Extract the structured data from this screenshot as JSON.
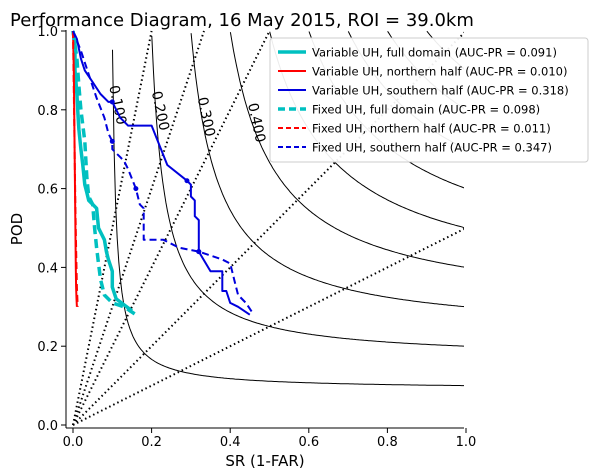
{
  "chart_data": {
    "type": "line",
    "title": "Performance Diagram, 16 May 2015, ROI = 39.0km",
    "xlabel": "SR (1-FAR)",
    "ylabel": "POD",
    "xlim": [
      0.0,
      1.0
    ],
    "ylim": [
      0.0,
      1.0
    ],
    "xticks": [
      "0.0",
      "0.2",
      "0.4",
      "0.6",
      "0.8",
      "1.0"
    ],
    "yticks": [
      "0.0",
      "0.2",
      "0.4",
      "0.6",
      "0.8",
      "1.0"
    ],
    "csi_contour_labels": [
      "0.100",
      "0.200",
      "0.300",
      "0.400"
    ],
    "csi_levels": [
      0.1,
      0.2,
      0.3,
      0.4,
      0.5,
      0.6,
      0.7,
      0.8,
      0.9
    ],
    "bias_slopes": [
      5.0,
      3.0,
      2.0,
      1.0,
      0.5
    ],
    "legend_placement": "top-right",
    "series": [
      {
        "name": "Variable UH, full domain (AUC-PR = 0.091)",
        "color": "#00c0c0",
        "dash": "solid",
        "width": "thick",
        "x": [
          0.0,
          0.005,
          0.005,
          0.01,
          0.012,
          0.015,
          0.02,
          0.025,
          0.03,
          0.035,
          0.04,
          0.06,
          0.065,
          0.08,
          0.085,
          0.09,
          0.1,
          0.1,
          0.11,
          0.15
        ],
        "y": [
          1.0,
          0.97,
          0.9,
          0.84,
          0.8,
          0.75,
          0.7,
          0.66,
          0.61,
          0.59,
          0.57,
          0.55,
          0.5,
          0.47,
          0.44,
          0.42,
          0.39,
          0.35,
          0.32,
          0.29
        ]
      },
      {
        "name": "Variable UH, northern half (AUC-PR = 0.010)",
        "color": "#ff0000",
        "dash": "solid",
        "width": "normal",
        "x": [
          0.0,
          0.002,
          0.003,
          0.004,
          0.005,
          0.006,
          0.007,
          0.008,
          0.009,
          0.01
        ],
        "y": [
          1.0,
          0.9,
          0.8,
          0.7,
          0.6,
          0.5,
          0.4,
          0.35,
          0.32,
          0.3
        ]
      },
      {
        "name": "Variable UH, southern half (AUC-PR = 0.318)",
        "color": "#0000dd",
        "dash": "solid",
        "width": "normal",
        "x": [
          0.0,
          0.01,
          0.02,
          0.03,
          0.05,
          0.07,
          0.09,
          0.1,
          0.12,
          0.14,
          0.2,
          0.24,
          0.29,
          0.3,
          0.3,
          0.31,
          0.31,
          0.32,
          0.32,
          0.35,
          0.38,
          0.38,
          0.39,
          0.4,
          0.42,
          0.45
        ],
        "y": [
          1.0,
          0.98,
          0.93,
          0.9,
          0.87,
          0.84,
          0.82,
          0.82,
          0.78,
          0.76,
          0.76,
          0.66,
          0.62,
          0.61,
          0.58,
          0.57,
          0.53,
          0.52,
          0.44,
          0.39,
          0.39,
          0.34,
          0.34,
          0.31,
          0.3,
          0.28
        ]
      },
      {
        "name": "Fixed UH, full domain (AUC-PR = 0.098)",
        "color": "#00c0c0",
        "dash": "dashed",
        "width": "thick",
        "x": [
          0.0,
          0.01,
          0.015,
          0.02,
          0.03,
          0.035,
          0.04,
          0.05,
          0.055,
          0.06,
          0.065,
          0.07,
          0.08,
          0.1,
          0.13,
          0.16
        ],
        "y": [
          1.0,
          0.93,
          0.86,
          0.8,
          0.72,
          0.63,
          0.58,
          0.56,
          0.5,
          0.45,
          0.41,
          0.37,
          0.33,
          0.31,
          0.3,
          0.28
        ]
      },
      {
        "name": "Fixed UH, northern half (AUC-PR = 0.011)",
        "color": "#ff0000",
        "dash": "dashed",
        "width": "normal",
        "x": [
          0.0,
          0.002,
          0.004,
          0.006,
          0.008,
          0.01,
          0.012
        ],
        "y": [
          1.0,
          0.85,
          0.7,
          0.55,
          0.45,
          0.35,
          0.3
        ]
      },
      {
        "name": "Fixed UH, southern half (AUC-PR = 0.347)",
        "color": "#0000dd",
        "dash": "dashed",
        "width": "normal",
        "x": [
          0.0,
          0.02,
          0.04,
          0.06,
          0.08,
          0.09,
          0.1,
          0.1,
          0.12,
          0.13,
          0.14,
          0.16,
          0.17,
          0.18,
          0.18,
          0.23,
          0.27,
          0.32,
          0.38,
          0.4,
          0.41,
          0.42,
          0.44,
          0.46
        ],
        "y": [
          1.0,
          0.95,
          0.89,
          0.83,
          0.78,
          0.74,
          0.72,
          0.7,
          0.68,
          0.67,
          0.65,
          0.6,
          0.56,
          0.55,
          0.47,
          0.47,
          0.45,
          0.44,
          0.42,
          0.41,
          0.37,
          0.33,
          0.31,
          0.28
        ]
      }
    ]
  }
}
